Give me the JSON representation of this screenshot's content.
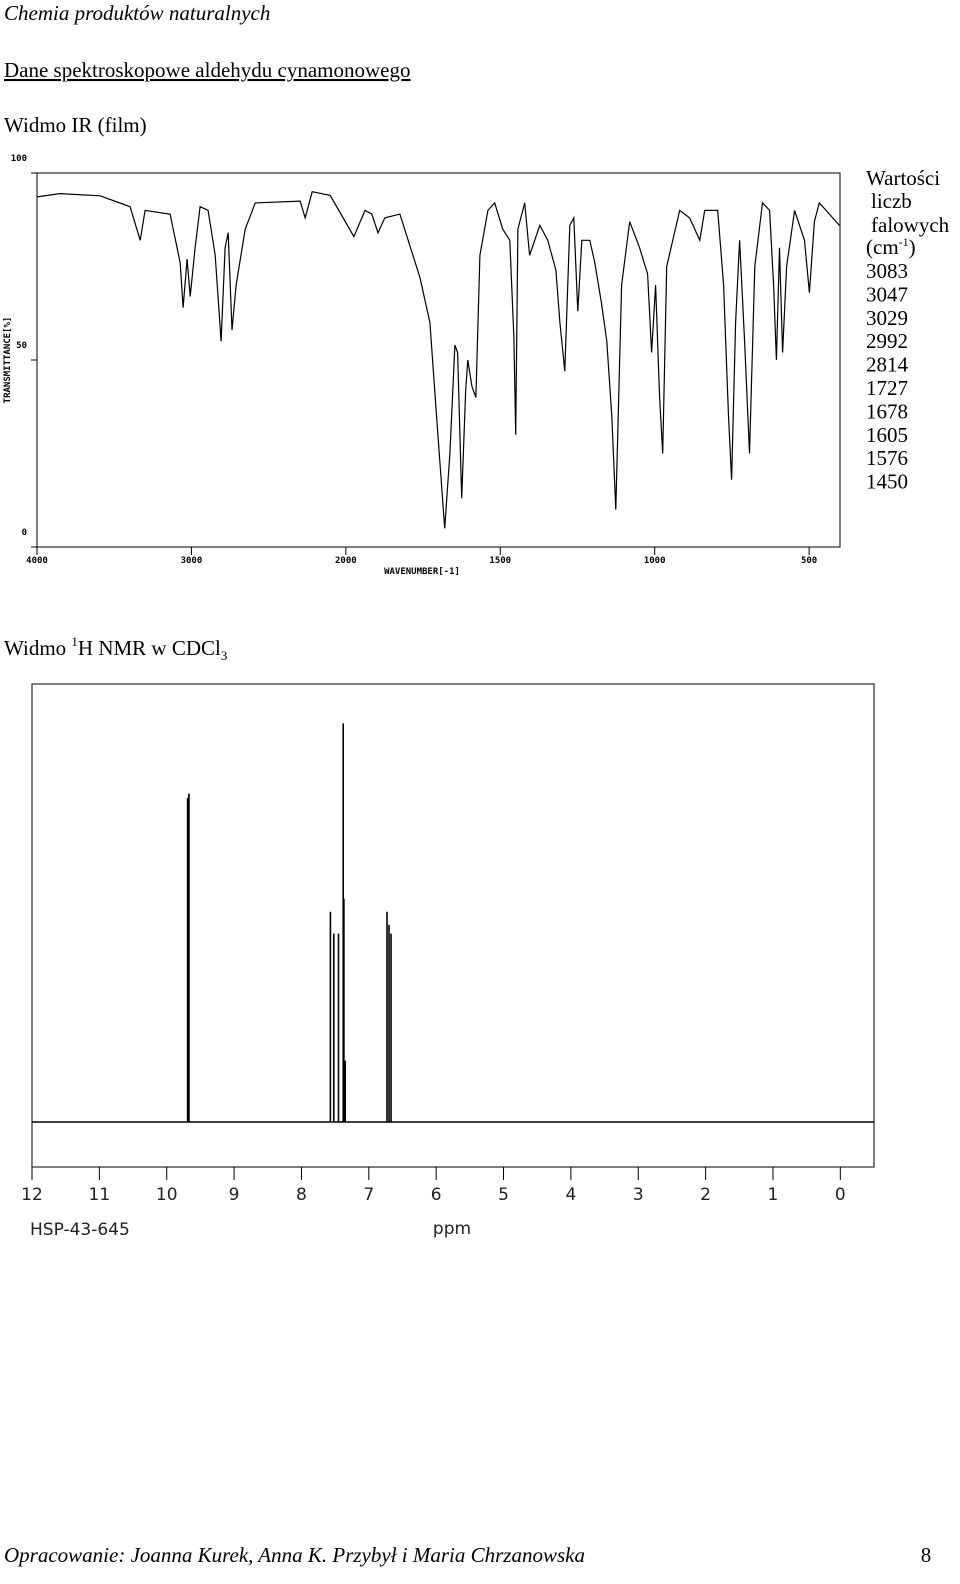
{
  "header": "Chemia produktów naturalnych",
  "heading": "Dane spektroskopowe aldehydu cynamonowego",
  "ir_caption": "Widmo IR (film)",
  "ir_side": {
    "lines": [
      "Wartości",
      "liczb",
      "falowych"
    ],
    "unit": [
      "(cm",
      "-1",
      ")"
    ],
    "values": [
      3083,
      3047,
      3029,
      2992,
      2814,
      1727,
      1678,
      1605,
      1576,
      1450
    ]
  },
  "nmr_caption": [
    "Widmo ",
    "1",
    "H NMR w CDCl",
    "3"
  ],
  "chart_data": [
    {
      "type": "line",
      "xlabel": "WAVENUMBER[-1]",
      "ylabel": "TRANSMITTANCE[%]",
      "xlim": [
        4000,
        400
      ],
      "xticks": [
        4000,
        3000,
        2000,
        1500,
        1000,
        500
      ],
      "xscale": "tick-interpolated",
      "ylim": [
        0,
        100
      ],
      "yticks": [
        0,
        50,
        100
      ],
      "color": "#000000",
      "x": [
        4000,
        3851,
        3592,
        3397,
        3332,
        3300,
        3138,
        3073,
        3054,
        3028,
        3008,
        2976,
        2944,
        2892,
        2846,
        2808,
        2782,
        2762,
        2737,
        2711,
        2652,
        2587,
        2296,
        2263,
        2218,
        2101,
        1974,
        1938,
        1916,
        1896,
        1874,
        1825,
        1806,
        1760,
        1728,
        1702,
        1680,
        1663,
        1647,
        1638,
        1625,
        1612,
        1605,
        1592,
        1579,
        1566,
        1540,
        1518,
        1492,
        1469,
        1456,
        1450,
        1443,
        1421,
        1405,
        1372,
        1346,
        1320,
        1307,
        1291,
        1275,
        1262,
        1249,
        1236,
        1210,
        1194,
        1172,
        1155,
        1139,
        1126,
        1107,
        1081,
        1049,
        1023,
        1010,
        997,
        984,
        974,
        961,
        919,
        887,
        854,
        838,
        796,
        777,
        761,
        751,
        738,
        725,
        709,
        693,
        676,
        651,
        628,
        615,
        606,
        596,
        586,
        573,
        547,
        515,
        499,
        483,
        467,
        402
      ],
      "values": [
        93.6,
        94.5,
        93.9,
        91,
        82,
        90,
        89,
        76,
        64,
        77,
        67,
        80,
        91,
        90,
        78,
        55,
        80,
        84,
        58,
        70,
        85,
        92,
        92.5,
        88,
        95,
        94,
        83,
        90,
        89,
        84,
        88,
        89,
        84,
        72,
        60,
        30,
        5,
        25,
        54,
        52,
        13,
        42,
        50,
        43,
        40,
        78,
        90,
        92,
        85,
        82,
        56,
        30,
        85,
        92,
        78,
        86,
        82,
        74,
        60,
        47,
        86,
        88,
        63,
        82,
        82,
        76,
        65,
        55,
        35,
        10,
        70,
        87,
        80,
        73,
        52,
        70,
        40,
        25,
        75,
        90,
        88,
        82,
        90,
        90,
        70,
        35,
        18,
        60,
        82,
        55,
        25,
        75,
        92,
        90,
        70,
        50,
        80,
        52,
        75,
        90,
        82,
        68,
        87,
        92,
        86
      ]
    },
    {
      "type": "stick",
      "xlabel": "ppm",
      "note": "HSP-43-645",
      "xlim": [
        12,
        -0.5
      ],
      "xticks": [
        12,
        11,
        10,
        9,
        8,
        7,
        6,
        5,
        4,
        3,
        2,
        1,
        0
      ],
      "ylim": [
        0,
        100
      ],
      "color": "#000000",
      "x": [
        9.69,
        9.67,
        7.57,
        7.52,
        7.45,
        7.38,
        7.37,
        7.35,
        6.73,
        6.7,
        6.67
      ],
      "values": [
        74,
        75,
        48,
        43,
        43,
        91,
        51,
        14,
        48,
        45,
        43
      ]
    }
  ],
  "footer": {
    "authors": "Opracowanie: Joanna Kurek, Anna K. Przybył i Maria Chrzanowska",
    "page": "8"
  }
}
